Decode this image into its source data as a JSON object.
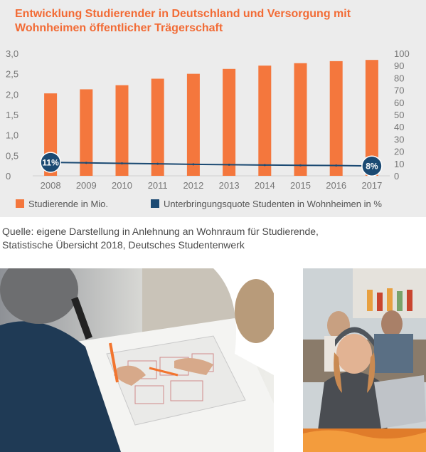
{
  "title": {
    "line1": "Entwicklung Studierender in Deutschland und Versorgung mit",
    "line2": "Wohnheimen öffentlicher Trägerschaft"
  },
  "chart_data": {
    "type": "bar",
    "categories": [
      "2008",
      "2009",
      "2010",
      "2011",
      "2012",
      "2013",
      "2014",
      "2015",
      "2016",
      "2017"
    ],
    "series": [
      {
        "name": "Studierende in Mio.",
        "type": "bar",
        "axis": "left",
        "color": "#f4773d",
        "values": [
          2.02,
          2.12,
          2.22,
          2.38,
          2.5,
          2.62,
          2.7,
          2.76,
          2.81,
          2.84
        ]
      },
      {
        "name": "Unterbringungsquote Studenten in Wohnheimen in %",
        "type": "line",
        "axis": "right",
        "color": "#1b4a73",
        "values": [
          11,
          10.6,
          10.2,
          9.8,
          9.4,
          9.1,
          8.8,
          8.6,
          8.4,
          8
        ]
      }
    ],
    "ylim_left": [
      0,
      3.0
    ],
    "yticks_left": [
      "0",
      "0,5",
      "1,0",
      "1,5",
      "2,0",
      "2,5",
      "3,0"
    ],
    "ylim_right": [
      0,
      100
    ],
    "yticks_right": [
      "0",
      "10",
      "20",
      "30",
      "40",
      "50",
      "60",
      "70",
      "80",
      "90",
      "100"
    ],
    "annotations": [
      {
        "category": "2008",
        "text": "11%"
      },
      {
        "category": "2017",
        "text": "8%"
      }
    ],
    "grid": false,
    "legend_position": "bottom"
  },
  "legend": {
    "bar_label": "Studierende in Mio.",
    "line_label": "Unterbringungsquote Studenten in Wohnheimen in %",
    "bar_color": "#f4773d",
    "line_color": "#1b4a73"
  },
  "source": {
    "line1": "Quelle: eigene Darstellung in Anlehnung an Wohnraum für Studierende,",
    "line2": "Statistische Übersicht 2018, Deutsches Studentenwerk"
  },
  "photos": [
    {
      "name": "people-planning-photo",
      "description_icon": "meeting-over-floor-plans"
    },
    {
      "name": "student-laptop-photo",
      "description_icon": "woman-with-laptop"
    }
  ]
}
